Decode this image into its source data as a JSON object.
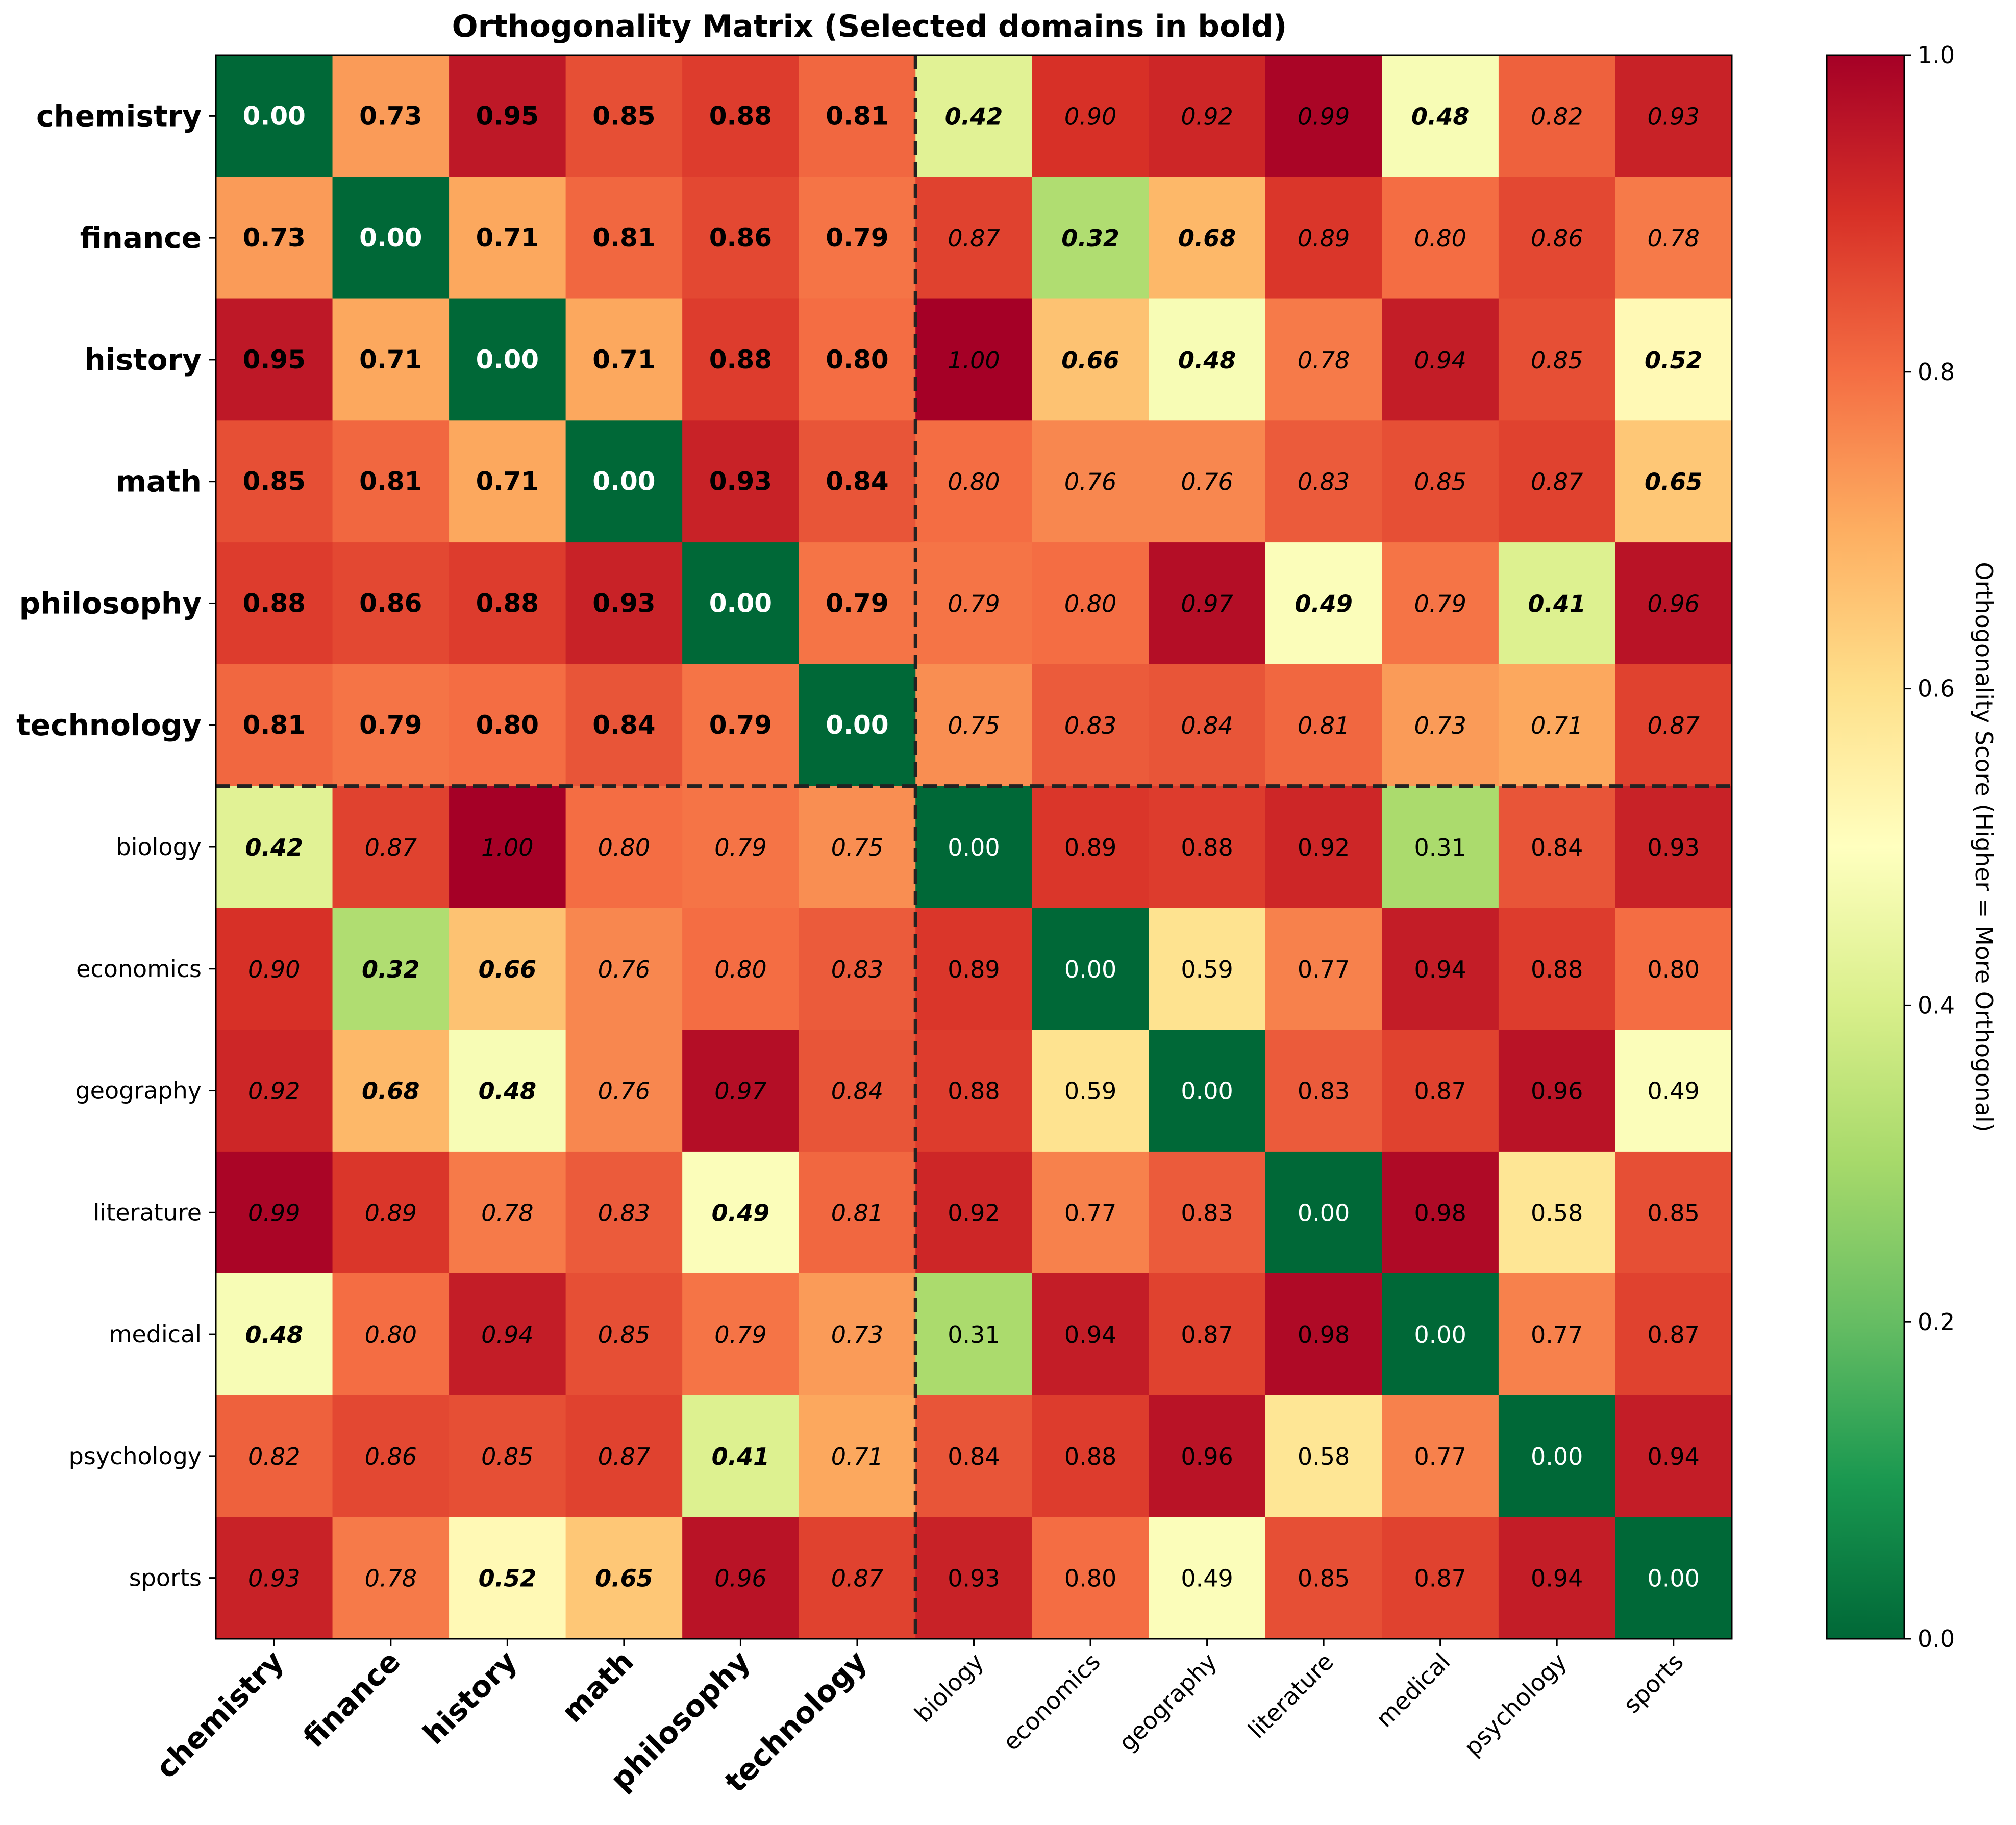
{
  "chart_data": {
    "type": "heatmap",
    "title": "Orthogonality Matrix (Selected domains in bold)",
    "rows": [
      "chemistry",
      "finance",
      "history",
      "math",
      "philosophy",
      "technology",
      "biology",
      "economics",
      "geography",
      "literature",
      "medical",
      "psychology",
      "sports"
    ],
    "columns": [
      "chemistry",
      "finance",
      "history",
      "math",
      "philosophy",
      "technology",
      "biology",
      "economics",
      "geography",
      "literature",
      "medical",
      "psychology",
      "sports"
    ],
    "selected_domains": [
      "chemistry",
      "finance",
      "history",
      "math",
      "philosophy",
      "technology"
    ],
    "values": [
      [
        0.0,
        0.73,
        0.95,
        0.85,
        0.88,
        0.81,
        0.42,
        0.9,
        0.92,
        0.99,
        0.48,
        0.82,
        0.93
      ],
      [
        0.73,
        0.0,
        0.71,
        0.81,
        0.86,
        0.79,
        0.87,
        0.32,
        0.68,
        0.89,
        0.8,
        0.86,
        0.78
      ],
      [
        0.95,
        0.71,
        0.0,
        0.71,
        0.88,
        0.8,
        1.0,
        0.66,
        0.48,
        0.78,
        0.94,
        0.85,
        0.52
      ],
      [
        0.85,
        0.81,
        0.71,
        0.0,
        0.93,
        0.84,
        0.8,
        0.76,
        0.76,
        0.83,
        0.85,
        0.87,
        0.65
      ],
      [
        0.88,
        0.86,
        0.88,
        0.93,
        0.0,
        0.79,
        0.79,
        0.8,
        0.97,
        0.49,
        0.79,
        0.41,
        0.96
      ],
      [
        0.81,
        0.79,
        0.8,
        0.84,
        0.79,
        0.0,
        0.75,
        0.83,
        0.84,
        0.81,
        0.73,
        0.71,
        0.87
      ],
      [
        0.42,
        0.87,
        1.0,
        0.8,
        0.79,
        0.75,
        0.0,
        0.89,
        0.88,
        0.92,
        0.31,
        0.84,
        0.93
      ],
      [
        0.9,
        0.32,
        0.66,
        0.76,
        0.8,
        0.83,
        0.89,
        0.0,
        0.59,
        0.77,
        0.94,
        0.88,
        0.8
      ],
      [
        0.92,
        0.68,
        0.48,
        0.76,
        0.97,
        0.84,
        0.88,
        0.59,
        0.0,
        0.83,
        0.87,
        0.96,
        0.49
      ],
      [
        0.99,
        0.89,
        0.78,
        0.83,
        0.49,
        0.81,
        0.92,
        0.77,
        0.83,
        0.0,
        0.98,
        0.58,
        0.85
      ],
      [
        0.48,
        0.8,
        0.94,
        0.85,
        0.79,
        0.73,
        0.31,
        0.94,
        0.87,
        0.98,
        0.0,
        0.77,
        0.87
      ],
      [
        0.82,
        0.86,
        0.85,
        0.87,
        0.41,
        0.71,
        0.84,
        0.88,
        0.96,
        0.58,
        0.77,
        0.0,
        0.94
      ],
      [
        0.93,
        0.78,
        0.52,
        0.65,
        0.96,
        0.87,
        0.93,
        0.8,
        0.49,
        0.85,
        0.87,
        0.94,
        0.0
      ]
    ],
    "value_range": [
      0.0,
      1.0
    ],
    "colormap": "RdYlGn_r",
    "colorbar": {
      "label": "Orthogonality Score (Higher = More Orthogonal)",
      "ticks": [
        "0.0",
        "0.2",
        "0.4",
        "0.6",
        "0.8",
        "1.0"
      ],
      "tick_values": [
        0.0,
        0.2,
        0.4,
        0.6,
        0.8,
        1.0
      ]
    },
    "separator": "dashed lines after the selected domains",
    "colors": {
      "low": "#006837",
      "mid": "#ffffbf",
      "high": "#a50026",
      "separator": "#222222"
    }
  }
}
